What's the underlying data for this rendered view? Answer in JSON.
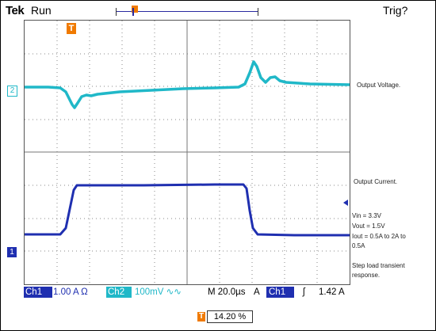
{
  "header": {
    "brand": "Tek",
    "mode": "Run",
    "trigger_status": "Trig?"
  },
  "markers": {
    "trigger_position": "T",
    "ch2": "2",
    "ch1": "1"
  },
  "traces": {
    "ch2_label": "Output Voltage.",
    "ch1_label": "Output Current."
  },
  "notes": {
    "vin": "Vin = 3.3V",
    "vout": "Vout = 1.5V",
    "iout_1": "Iout = 0.5A to 2A to",
    "iout_2": "0.5A",
    "desc_1": "Step load transient",
    "desc_2": "response."
  },
  "status_bar": {
    "ch1_label": "Ch1",
    "ch1_scale": "1.00 A Ω",
    "ch2_label": "Ch2",
    "ch2_scale": "100mV ∿∿",
    "timebase": "M 20.0µs",
    "trigger_source_prefix": "A",
    "trigger_source": "Ch1",
    "trigger_slope": "ʃ",
    "trigger_level": "1.42 A"
  },
  "horizontal_position": {
    "marker": "T",
    "value": "14.20 %"
  },
  "colors": {
    "ch1": "#1f2fb0",
    "ch2": "#20b8c8",
    "trigger": "#f07a00"
  }
}
